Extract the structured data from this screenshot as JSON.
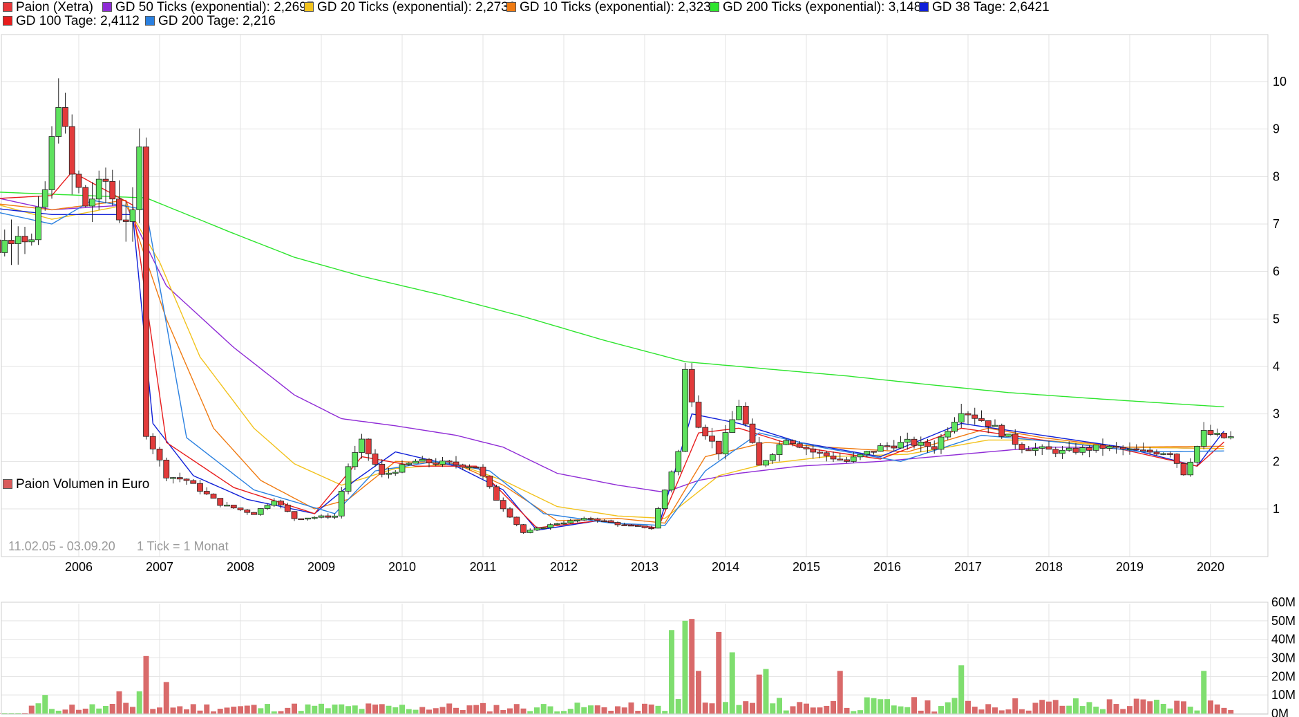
{
  "price_chart": {
    "date_range": "11.02.05 - 03.09.20",
    "interval": "1 Tick = 1 Monat",
    "legend": [
      {
        "name": "Paion (Xetra)",
        "color": "#e8373a"
      },
      {
        "name": "GD 50 Ticks (exponential): 2,2697",
        "color": "#8f2bd6"
      },
      {
        "name": "GD 20 Ticks (exponential): 2,2736",
        "color": "#f2c21c"
      },
      {
        "name": "GD 10 Ticks (exponential): 2,3232",
        "color": "#f07b12"
      },
      {
        "name": "GD 200 Ticks (exponential): 3,1488",
        "color": "#2ee52e"
      },
      {
        "name": "GD 38 Tage: 2,6421",
        "color": "#1020d8"
      },
      {
        "name": "GD 100 Tage: 2,4112",
        "color": "#e81c1c"
      },
      {
        "name": "GD 200 Tage: 2,216",
        "color": "#2a80e0"
      }
    ]
  },
  "volume_chart": {
    "legend": {
      "name": "Paion Volumen in Euro",
      "color": "#d95a5a"
    }
  },
  "chart_data": [
    {
      "type": "candlestick",
      "title": "Paion (Xetra)",
      "x_ticks": [
        "2006",
        "2007",
        "2008",
        "2009",
        "2010",
        "2011",
        "2012",
        "2013",
        "2014",
        "2015",
        "2016",
        "2017",
        "2018",
        "2019",
        "2020"
      ],
      "y_ticks": [
        1,
        2,
        3,
        4,
        5,
        6,
        7,
        8,
        9,
        10
      ],
      "ylim": [
        0,
        11
      ],
      "grid": true,
      "close_path": [
        [
          "2005-02",
          7.7
        ],
        [
          "2005-05",
          6.7
        ],
        [
          "2005-07",
          6.5
        ],
        [
          "2005-10",
          6.9
        ],
        [
          "2005-12",
          6.6
        ],
        [
          "2006-02",
          7.7
        ],
        [
          "2006-04",
          9.7
        ],
        [
          "2006-06",
          8.0
        ],
        [
          "2006-08",
          7.4
        ],
        [
          "2006-11",
          7.9
        ],
        [
          "2007-01",
          7.2
        ],
        [
          "2007-03",
          7.1
        ],
        [
          "2007-04",
          8.5
        ],
        [
          "2007-05",
          2.6
        ],
        [
          "2007-06",
          2.3
        ],
        [
          "2007-08",
          1.7
        ],
        [
          "2007-11",
          1.6
        ],
        [
          "2008-04",
          1.1
        ],
        [
          "2008-09",
          0.9
        ],
        [
          "2008-12",
          1.2
        ],
        [
          "2009-03",
          0.8
        ],
        [
          "2009-09",
          0.85
        ],
        [
          "2009-11",
          1.9
        ],
        [
          "2010-01",
          2.4
        ],
        [
          "2010-04",
          1.7
        ],
        [
          "2010-09",
          2.0
        ],
        [
          "2011-02",
          1.95
        ],
        [
          "2011-06",
          1.9
        ],
        [
          "2011-09",
          1.2
        ],
        [
          "2012-01",
          0.5
        ],
        [
          "2012-06",
          0.7
        ],
        [
          "2012-11",
          0.8
        ],
        [
          "2013-04",
          0.65
        ],
        [
          "2013-08",
          0.6
        ],
        [
          "2013-12",
          2.2
        ],
        [
          "2014-01",
          3.9
        ],
        [
          "2014-03",
          2.8
        ],
        [
          "2014-06",
          2.2
        ],
        [
          "2014-09",
          3.2
        ],
        [
          "2014-12",
          1.9
        ],
        [
          "2015-04",
          2.5
        ],
        [
          "2015-08",
          2.2
        ],
        [
          "2016-01",
          2.0
        ],
        [
          "2016-06",
          2.3
        ],
        [
          "2016-10",
          2.4
        ],
        [
          "2017-02",
          2.3
        ],
        [
          "2017-06",
          3.1
        ],
        [
          "2017-10",
          2.8
        ],
        [
          "2018-03",
          2.3
        ],
        [
          "2018-09",
          2.2
        ],
        [
          "2019-03",
          2.3
        ],
        [
          "2019-09",
          2.2
        ],
        [
          "2020-01",
          2.2
        ],
        [
          "2020-03",
          1.75
        ],
        [
          "2020-06",
          2.6
        ],
        [
          "2020-09",
          2.5
        ]
      ],
      "series": [
        {
          "name": "GD 200 Ticks (exponential): 3,1488",
          "color": "#2ee52e",
          "points": [
            [
              "2005-02",
              7.7
            ],
            [
              "2007-05",
              7.55
            ],
            [
              "2008-06",
              6.8
            ],
            [
              "2009-03",
              6.3
            ],
            [
              "2010-01",
              5.9
            ],
            [
              "2011-01",
              5.5
            ],
            [
              "2012-01",
              5.05
            ],
            [
              "2013-01",
              4.55
            ],
            [
              "2014-01",
              4.1
            ],
            [
              "2015-01",
              3.95
            ],
            [
              "2016-01",
              3.8
            ],
            [
              "2017-01",
              3.62
            ],
            [
              "2018-01",
              3.45
            ],
            [
              "2019-01",
              3.33
            ],
            [
              "2020-01",
              3.22
            ],
            [
              "2020-09",
              3.15
            ]
          ]
        },
        {
          "name": "GD 50 Ticks (exponential): 2,2697",
          "color": "#8f2bd6",
          "points": [
            [
              "2005-02",
              7.7
            ],
            [
              "2006-03",
              7.3
            ],
            [
              "2007-02",
              7.4
            ],
            [
              "2007-08",
              5.7
            ],
            [
              "2008-06",
              4.4
            ],
            [
              "2009-03",
              3.4
            ],
            [
              "2009-10",
              2.9
            ],
            [
              "2010-06",
              2.75
            ],
            [
              "2011-03",
              2.55
            ],
            [
              "2011-10",
              2.3
            ],
            [
              "2012-06",
              1.75
            ],
            [
              "2013-03",
              1.5
            ],
            [
              "2013-10",
              1.35
            ],
            [
              "2014-03",
              1.6
            ],
            [
              "2014-09",
              1.75
            ],
            [
              "2015-06",
              1.9
            ],
            [
              "2016-06",
              2.0
            ],
            [
              "2017-06",
              2.15
            ],
            [
              "2018-06",
              2.3
            ],
            [
              "2019-06",
              2.3
            ],
            [
              "2020-09",
              2.27
            ]
          ]
        },
        {
          "name": "GD 20 Ticks (exponential): 2,2736",
          "color": "#f2c21c",
          "points": [
            [
              "2005-02",
              7.6
            ],
            [
              "2006-03",
              7.1
            ],
            [
              "2007-02",
              7.4
            ],
            [
              "2007-07",
              6.2
            ],
            [
              "2008-01",
              4.2
            ],
            [
              "2008-09",
              2.7
            ],
            [
              "2009-03",
              1.95
            ],
            [
              "2009-10",
              1.5
            ],
            [
              "2010-06",
              1.85
            ],
            [
              "2011-03",
              1.95
            ],
            [
              "2011-10",
              1.6
            ],
            [
              "2012-06",
              1.05
            ],
            [
              "2013-03",
              0.85
            ],
            [
              "2013-10",
              0.8
            ],
            [
              "2014-06",
              1.7
            ],
            [
              "2015-01",
              1.95
            ],
            [
              "2015-10",
              2.1
            ],
            [
              "2016-10",
              2.15
            ],
            [
              "2017-10",
              2.45
            ],
            [
              "2018-06",
              2.45
            ],
            [
              "2019-06",
              2.3
            ],
            [
              "2020-09",
              2.27
            ]
          ]
        },
        {
          "name": "GD 10 Ticks (exponential): 2,3232",
          "color": "#f07b12",
          "points": [
            [
              "2005-02",
              7.5
            ],
            [
              "2006-03",
              7.3
            ],
            [
              "2007-02",
              7.5
            ],
            [
              "2007-08",
              5.0
            ],
            [
              "2008-03",
              2.7
            ],
            [
              "2008-10",
              1.6
            ],
            [
              "2009-06",
              1.0
            ],
            [
              "2009-11",
              1.2
            ],
            [
              "2010-06",
              2.0
            ],
            [
              "2011-03",
              1.95
            ],
            [
              "2011-10",
              1.5
            ],
            [
              "2012-06",
              0.75
            ],
            [
              "2013-03",
              0.8
            ],
            [
              "2013-10",
              0.7
            ],
            [
              "2014-04",
              2.1
            ],
            [
              "2015-01",
              2.4
            ],
            [
              "2015-10",
              2.3
            ],
            [
              "2016-10",
              2.2
            ],
            [
              "2017-10",
              2.7
            ],
            [
              "2018-06",
              2.5
            ],
            [
              "2019-06",
              2.3
            ],
            [
              "2020-09",
              2.32
            ]
          ]
        },
        {
          "name": "GD 38 Tage: 2,6421",
          "color": "#1020d8",
          "points": [
            [
              "2005-02",
              7.4
            ],
            [
              "2006-03",
              7.2
            ],
            [
              "2007-03",
              7.2
            ],
            [
              "2007-06",
              2.8
            ],
            [
              "2007-12",
              1.7
            ],
            [
              "2008-08",
              1.2
            ],
            [
              "2009-06",
              0.9
            ],
            [
              "2009-12",
              1.6
            ],
            [
              "2010-06",
              2.2
            ],
            [
              "2011-03",
              1.9
            ],
            [
              "2011-10",
              1.4
            ],
            [
              "2012-03",
              0.55
            ],
            [
              "2012-12",
              0.75
            ],
            [
              "2013-09",
              0.6
            ],
            [
              "2014-02",
              3.0
            ],
            [
              "2014-09",
              2.8
            ],
            [
              "2015-06",
              2.4
            ],
            [
              "2016-06",
              2.1
            ],
            [
              "2017-06",
              2.8
            ],
            [
              "2018-06",
              2.55
            ],
            [
              "2019-06",
              2.3
            ],
            [
              "2020-05",
              1.9
            ],
            [
              "2020-09",
              2.64
            ]
          ]
        },
        {
          "name": "GD 100 Tage: 2,4112",
          "color": "#e81c1c",
          "points": [
            [
              "2005-02",
              7.5
            ],
            [
              "2006-03",
              7.6
            ],
            [
              "2006-06",
              8.1
            ],
            [
              "2007-03",
              7.4
            ],
            [
              "2007-08",
              2.4
            ],
            [
              "2008-06",
              1.45
            ],
            [
              "2009-06",
              0.9
            ],
            [
              "2010-01",
              2.1
            ],
            [
              "2010-09",
              1.9
            ],
            [
              "2011-06",
              1.9
            ],
            [
              "2012-03",
              0.6
            ],
            [
              "2012-12",
              0.75
            ],
            [
              "2013-09",
              0.6
            ],
            [
              "2014-03",
              2.6
            ],
            [
              "2014-09",
              2.7
            ],
            [
              "2015-06",
              2.3
            ],
            [
              "2016-06",
              2.05
            ],
            [
              "2017-06",
              2.7
            ],
            [
              "2018-06",
              2.45
            ],
            [
              "2019-06",
              2.25
            ],
            [
              "2020-05",
              1.9
            ],
            [
              "2020-09",
              2.41
            ]
          ]
        },
        {
          "name": "GD 200 Tage: 2,216",
          "color": "#2a80e0",
          "points": [
            [
              "2005-02",
              7.4
            ],
            [
              "2006-03",
              7.0
            ],
            [
              "2006-09",
              7.5
            ],
            [
              "2007-05",
              7.3
            ],
            [
              "2007-11",
              2.5
            ],
            [
              "2008-09",
              1.4
            ],
            [
              "2009-09",
              0.9
            ],
            [
              "2010-03",
              1.8
            ],
            [
              "2010-12",
              2.0
            ],
            [
              "2011-08",
              1.8
            ],
            [
              "2012-04",
              0.9
            ],
            [
              "2013-02",
              0.7
            ],
            [
              "2013-10",
              0.65
            ],
            [
              "2014-04",
              1.8
            ],
            [
              "2014-12",
              2.6
            ],
            [
              "2015-09",
              2.3
            ],
            [
              "2016-09",
              2.0
            ],
            [
              "2017-09",
              2.55
            ],
            [
              "2018-09",
              2.4
            ],
            [
              "2019-09",
              2.2
            ],
            [
              "2020-09",
              2.22
            ]
          ]
        }
      ]
    },
    {
      "type": "bar",
      "title": "Paion Volumen in Euro",
      "y_ticks": [
        "0M",
        "10M",
        "20M",
        "30M",
        "40M",
        "50M",
        "60M"
      ],
      "ylim": [
        0,
        60
      ],
      "grid": true,
      "highlights": [
        [
          "2006-02",
          10
        ],
        [
          "2007-01",
          12
        ],
        [
          "2007-04",
          12
        ],
        [
          "2007-05",
          31
        ],
        [
          "2007-08",
          17
        ],
        [
          "2013-11",
          45
        ],
        [
          "2014-01",
          50
        ],
        [
          "2014-02",
          51
        ],
        [
          "2014-03",
          23
        ],
        [
          "2014-06",
          44
        ],
        [
          "2014-08",
          33
        ],
        [
          "2014-12",
          21
        ],
        [
          "2015-01",
          24
        ],
        [
          "2015-12",
          23
        ],
        [
          "2017-06",
          26
        ],
        [
          "2020-06",
          23
        ]
      ]
    }
  ]
}
